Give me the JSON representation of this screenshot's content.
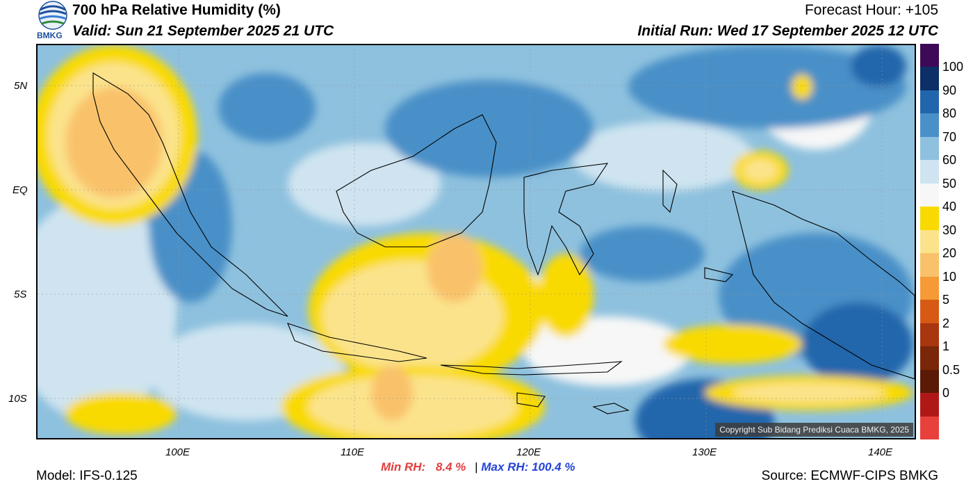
{
  "header": {
    "title": "700 hPa Relative Humidity (%)",
    "valid": "Valid: Sun 21 September 2025 21 UTC",
    "forecast_hour": "Forecast Hour: +105",
    "initial_run": "Initial Run: Wed 17 September 2025 12 UTC",
    "logo_text": "BMKG"
  },
  "map": {
    "lon_labels": [
      "100E",
      "110E",
      "120E",
      "130E",
      "140E"
    ],
    "lat_labels": [
      "5N",
      "EQ",
      "5S",
      "10S"
    ],
    "copyright": "Copyright Sub Bidang Prediksi Cuaca BMKG, 2025"
  },
  "legend": {
    "labels": [
      "100",
      "90",
      "80",
      "70",
      "60",
      "50",
      "40",
      "30",
      "20",
      "10",
      "5",
      "2",
      "1",
      "0.5",
      "0"
    ],
    "colors": [
      "#3d0a58",
      "#0b2f66",
      "#2166ac",
      "#4a90c8",
      "#8ec1de",
      "#cfe4f0",
      "#f7f7f7",
      "#f9da00",
      "#fbe38c",
      "#f9c26a",
      "#f59a35",
      "#d65a14",
      "#a8360e",
      "#7a2608",
      "#5a1a06",
      "#b01818",
      "#e8413c"
    ]
  },
  "stats": {
    "min_label": "Min RH:",
    "min_value": "8.4 %",
    "separator": "|",
    "max_label": "Max RH:",
    "max_value": "100.4 %"
  },
  "footer": {
    "model": "Model: IFS-0.125",
    "source": "Source: ECMWF-CIPS BMKG"
  }
}
